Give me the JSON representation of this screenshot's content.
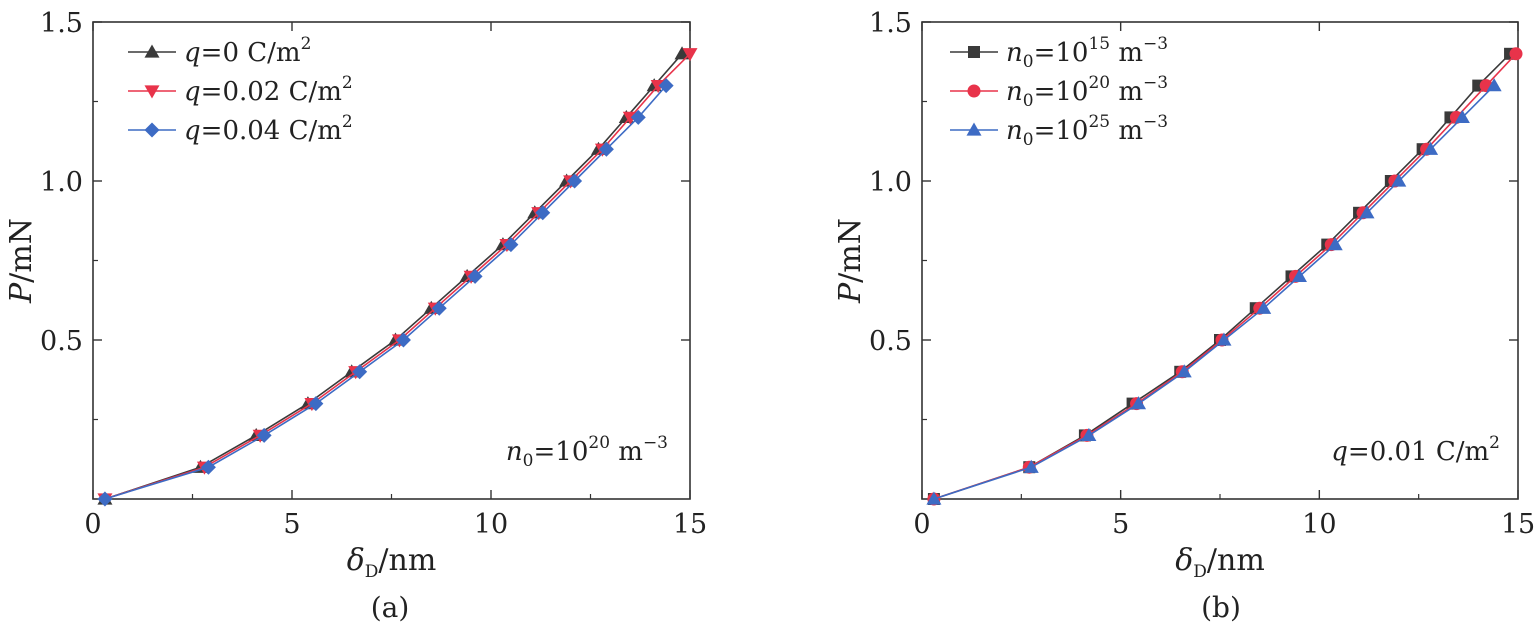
{
  "chart_data": [
    {
      "type": "line",
      "caption": "(a)",
      "xlabel_symbol": "δ",
      "xlabel_sub": "D",
      "xlabel_unit": "/nm",
      "ylabel_symbol": "P",
      "ylabel_unit": "/mN",
      "xlim": [
        0,
        15
      ],
      "ylim": [
        0,
        1.5
      ],
      "xticks": [
        "0",
        "5",
        "10",
        "15"
      ],
      "yticks": [
        "0.5",
        "1.0",
        "1.5"
      ],
      "annotation": {
        "var": "n",
        "sub": "0",
        "eq": "=10",
        "sup": "20",
        "unit": " m",
        "unit_sup": "−3"
      },
      "legend_position": "top-left",
      "series": [
        {
          "name": "q=0 C/m²",
          "legend": {
            "var": "q",
            "rest": "=0 C/m",
            "sup": "2"
          },
          "color": "#3a3a3a",
          "marker": "triangle-up",
          "x": [
            0.3,
            2.7,
            4.1,
            5.4,
            6.5,
            7.6,
            8.5,
            9.4,
            10.3,
            11.1,
            11.9,
            12.7,
            13.4,
            14.1,
            14.8
          ],
          "y": [
            0.0,
            0.1,
            0.2,
            0.3,
            0.4,
            0.5,
            0.6,
            0.7,
            0.8,
            0.9,
            1.0,
            1.1,
            1.2,
            1.3,
            1.4
          ]
        },
        {
          "name": "q=0.02 C/m²",
          "legend": {
            "var": "q",
            "rest": "=0.02 C/m",
            "sup": "2"
          },
          "color": "#e8334a",
          "marker": "triangle-down",
          "x": [
            0.3,
            2.8,
            4.2,
            5.5,
            6.6,
            7.7,
            8.6,
            9.5,
            10.4,
            11.2,
            12.0,
            12.8,
            13.5,
            14.2,
            15.0
          ],
          "y": [
            0.0,
            0.1,
            0.2,
            0.3,
            0.4,
            0.5,
            0.6,
            0.7,
            0.8,
            0.9,
            1.0,
            1.1,
            1.2,
            1.3,
            1.4
          ]
        },
        {
          "name": "q=0.04 C/m²",
          "legend": {
            "var": "q",
            "rest": "=0.04 C/m",
            "sup": "2"
          },
          "color": "#3d6bc4",
          "marker": "diamond",
          "x": [
            0.3,
            2.9,
            4.3,
            5.6,
            6.7,
            7.8,
            8.7,
            9.6,
            10.5,
            11.3,
            12.1,
            12.9,
            13.7,
            14.4
          ],
          "y": [
            0.0,
            0.1,
            0.2,
            0.3,
            0.4,
            0.5,
            0.6,
            0.7,
            0.8,
            0.9,
            1.0,
            1.1,
            1.2,
            1.3
          ]
        }
      ]
    },
    {
      "type": "line",
      "caption": "(b)",
      "xlabel_symbol": "δ",
      "xlabel_sub": "D",
      "xlabel_unit": "/nm",
      "ylabel_symbol": "P",
      "ylabel_unit": "/mN",
      "xlim": [
        0,
        15
      ],
      "ylim": [
        0,
        1.5
      ],
      "xticks": [
        "0",
        "5",
        "10",
        "15"
      ],
      "yticks": [
        "0.5",
        "1.0",
        "1.5"
      ],
      "annotation": {
        "var": "q",
        "sub": "",
        "eq": "=0.01 C/m",
        "sup": "2",
        "unit": "",
        "unit_sup": ""
      },
      "legend_position": "top-left",
      "series": [
        {
          "name": "n0=10^15 m^-3",
          "legend": {
            "var": "n",
            "sub": "0",
            "eq": "=10",
            "sup": "15",
            "unit": " m",
            "unit_sup": "−3"
          },
          "color": "#3a3a3a",
          "marker": "square",
          "x": [
            0.3,
            2.7,
            4.1,
            5.3,
            6.5,
            7.5,
            8.4,
            9.3,
            10.2,
            11.0,
            11.8,
            12.6,
            13.3,
            14.0,
            14.8
          ],
          "y": [
            0.0,
            0.1,
            0.2,
            0.3,
            0.4,
            0.5,
            0.6,
            0.7,
            0.8,
            0.9,
            1.0,
            1.1,
            1.2,
            1.3,
            1.4
          ]
        },
        {
          "name": "n0=10^20 m^-3",
          "legend": {
            "var": "n",
            "sub": "0",
            "eq": "=10",
            "sup": "20",
            "unit": " m",
            "unit_sup": "−3"
          },
          "color": "#e8334a",
          "marker": "circle",
          "x": [
            0.3,
            2.7,
            4.15,
            5.4,
            6.55,
            7.55,
            8.5,
            9.4,
            10.3,
            11.1,
            11.9,
            12.7,
            13.45,
            14.2,
            14.95
          ],
          "y": [
            0.0,
            0.1,
            0.2,
            0.3,
            0.4,
            0.5,
            0.6,
            0.7,
            0.8,
            0.9,
            1.0,
            1.1,
            1.2,
            1.3,
            1.4
          ]
        },
        {
          "name": "n0=10^25 m^-3",
          "legend": {
            "var": "n",
            "sub": "0",
            "eq": "=10",
            "sup": "25",
            "unit": " m",
            "unit_sup": "−3"
          },
          "color": "#3d6bc4",
          "marker": "triangle-up",
          "x": [
            0.3,
            2.75,
            4.2,
            5.45,
            6.6,
            7.6,
            8.6,
            9.5,
            10.4,
            11.2,
            12.0,
            12.8,
            13.6,
            14.4
          ],
          "y": [
            0.0,
            0.1,
            0.2,
            0.3,
            0.4,
            0.5,
            0.6,
            0.7,
            0.8,
            0.9,
            1.0,
            1.1,
            1.2,
            1.3
          ]
        }
      ]
    }
  ]
}
